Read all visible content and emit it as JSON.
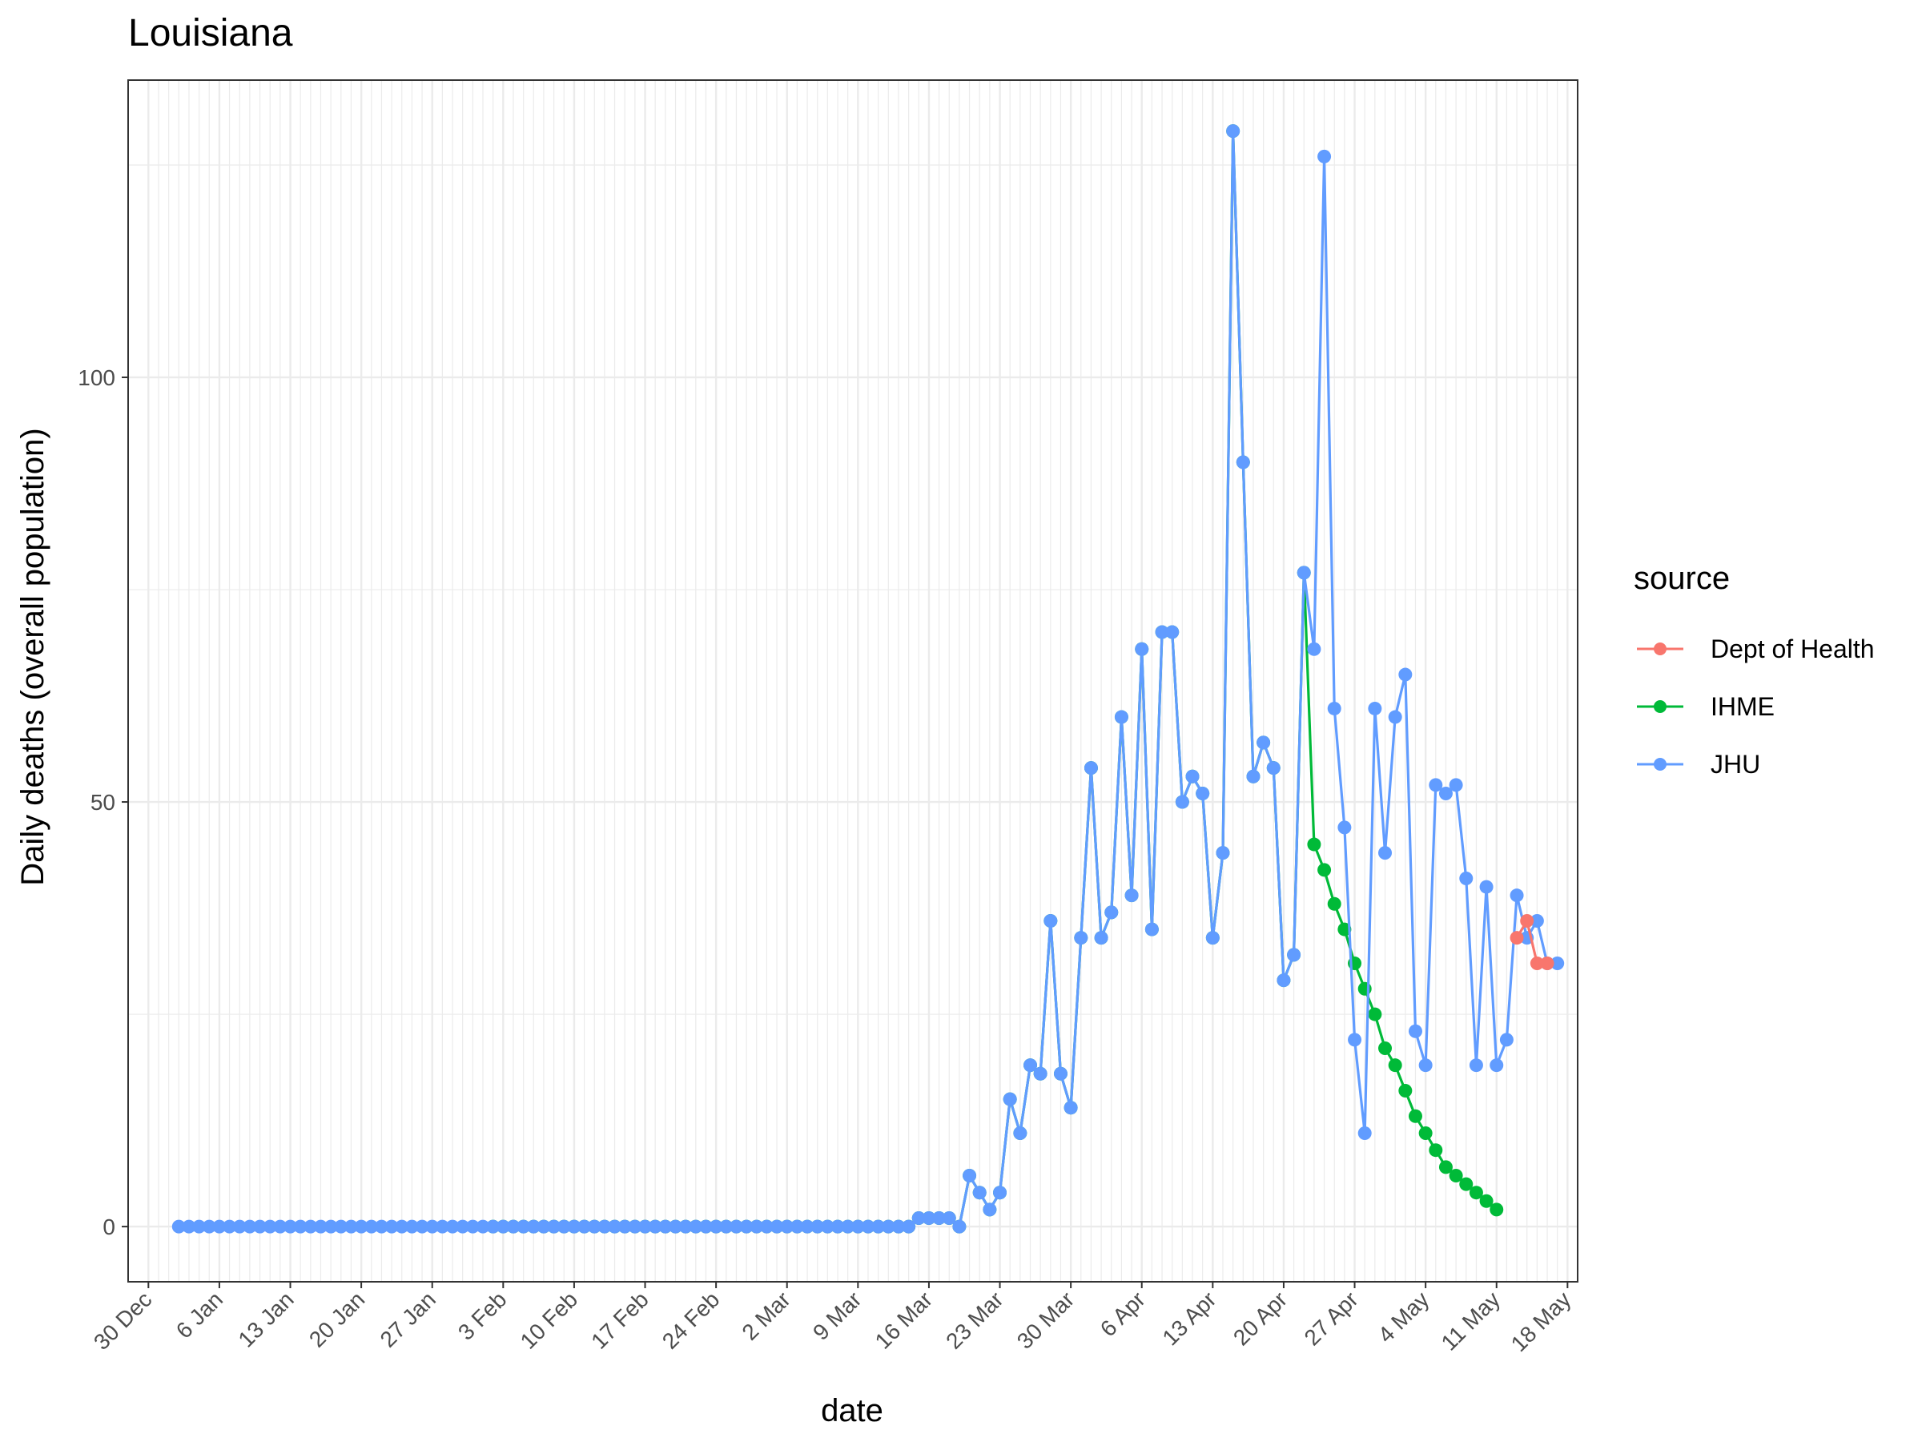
{
  "chart_data": {
    "type": "line",
    "title": "Louisiana",
    "xlabel": "date",
    "ylabel": "Daily deaths (overall population)",
    "x_ticks": [
      "30 Dec",
      "6 Jan",
      "13 Jan",
      "20 Jan",
      "27 Jan",
      "3 Feb",
      "10 Feb",
      "17 Feb",
      "24 Feb",
      "2 Mar",
      "9 Mar",
      "16 Mar",
      "23 Mar",
      "30 Mar",
      "6 Apr",
      "13 Apr",
      "20 Apr",
      "27 Apr",
      "4 May",
      "11 May",
      "18 May"
    ],
    "x_tick_dates": [
      "2019-12-30",
      "2020-01-06",
      "2020-01-13",
      "2020-01-20",
      "2020-01-27",
      "2020-02-03",
      "2020-02-10",
      "2020-02-17",
      "2020-02-24",
      "2020-03-02",
      "2020-03-09",
      "2020-03-16",
      "2020-03-23",
      "2020-03-30",
      "2020-04-06",
      "2020-04-13",
      "2020-04-20",
      "2020-04-27",
      "2020-05-04",
      "2020-05-11",
      "2020-05-18"
    ],
    "xlim": [
      "2019-12-28",
      "2020-05-19"
    ],
    "y_ticks": [
      0,
      50,
      100
    ],
    "ylim": [
      -6.5,
      135
    ],
    "grid": true,
    "legend_title": "source",
    "legend_position": "right",
    "series": [
      {
        "name": "Dept of Health",
        "color": "#F8766D",
        "dates": [
          "2020-05-13",
          "2020-05-14",
          "2020-05-15",
          "2020-05-16"
        ],
        "values": [
          34,
          36,
          31,
          31
        ]
      },
      {
        "name": "IHME",
        "color": "#00BA38",
        "start_date": "2020-02-02",
        "values": [
          0,
          0,
          0,
          0,
          0,
          0,
          0,
          0,
          0,
          0,
          0,
          0,
          0,
          0,
          0,
          0,
          0,
          0,
          0,
          0,
          0,
          0,
          0,
          0,
          0,
          0,
          0,
          0,
          0,
          0,
          0,
          0,
          0,
          0,
          0,
          0,
          0,
          0,
          0,
          0,
          0,
          0,
          1,
          1,
          1,
          1,
          0,
          6,
          4,
          2,
          4,
          15,
          11,
          19,
          18,
          36,
          18,
          14,
          34,
          54,
          34,
          37,
          60,
          39,
          68,
          35,
          70,
          70,
          50,
          53,
          51,
          34,
          44,
          129,
          90,
          53,
          57,
          54,
          29,
          32,
          77,
          45,
          42,
          38,
          35,
          31,
          28,
          25,
          21,
          19,
          16,
          13,
          11,
          9,
          7,
          6,
          5,
          4,
          3,
          2
        ]
      },
      {
        "name": "JHU",
        "color": "#619CFF",
        "start_date": "2020-01-02",
        "values": [
          0,
          0,
          0,
          0,
          0,
          0,
          0,
          0,
          0,
          0,
          0,
          0,
          0,
          0,
          0,
          0,
          0,
          0,
          0,
          0,
          0,
          0,
          0,
          0,
          0,
          0,
          0,
          0,
          0,
          0,
          0,
          0,
          0,
          0,
          0,
          0,
          0,
          0,
          0,
          0,
          0,
          0,
          0,
          0,
          0,
          0,
          0,
          0,
          0,
          0,
          0,
          0,
          0,
          0,
          0,
          0,
          0,
          0,
          0,
          0,
          0,
          0,
          0,
          0,
          0,
          0,
          0,
          0,
          0,
          0,
          0,
          0,
          0,
          1,
          1,
          1,
          1,
          0,
          6,
          4,
          2,
          4,
          15,
          11,
          19,
          18,
          36,
          18,
          14,
          34,
          54,
          34,
          37,
          60,
          39,
          68,
          35,
          70,
          70,
          50,
          53,
          51,
          34,
          44,
          129,
          90,
          53,
          57,
          54,
          29,
          32,
          77,
          68,
          126,
          61,
          47,
          22,
          11,
          61,
          44,
          60,
          65,
          23,
          19,
          52,
          51,
          52,
          41,
          19,
          40,
          19,
          22,
          39,
          34,
          36,
          31,
          31
        ]
      }
    ]
  }
}
